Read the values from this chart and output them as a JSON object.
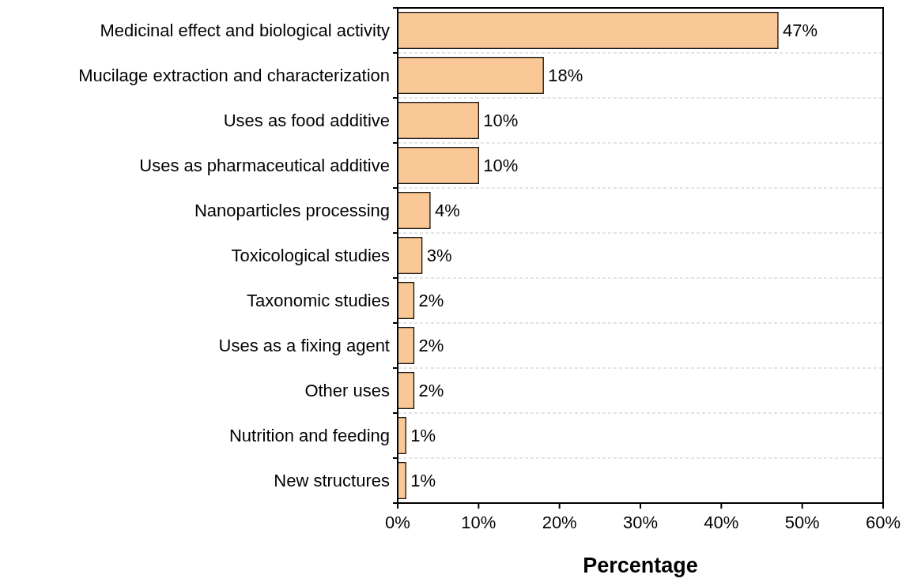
{
  "chart_data": {
    "type": "bar",
    "orientation": "horizontal",
    "xlabel": "Percentage",
    "categories": [
      "Medicinal effect and biological activity",
      "Mucilage extraction and characterization",
      "Uses as food additive",
      "Uses as pharmaceutical additive",
      "Nanoparticles processing",
      "Toxicological studies",
      "Taxonomic studies",
      "Uses as a fixing agent",
      "Other uses",
      "Nutrition and feeding",
      "New structures"
    ],
    "values": [
      47,
      18,
      10,
      10,
      4,
      3,
      2,
      2,
      2,
      1,
      1
    ],
    "value_labels": [
      "47%",
      "18%",
      "10%",
      "10%",
      "4%",
      "3%",
      "2%",
      "2%",
      "2%",
      "1%",
      "1%"
    ],
    "color": "#fac896",
    "xlim": [
      0,
      60
    ],
    "xticks": [
      {
        "value": 0,
        "label": "0%"
      },
      {
        "value": 10,
        "label": "10%"
      },
      {
        "value": 20,
        "label": "20%"
      },
      {
        "value": 30,
        "label": "30%"
      },
      {
        "value": 40,
        "label": "40%"
      },
      {
        "value": 50,
        "label": "50%"
      },
      {
        "value": 60,
        "label": "60%"
      }
    ],
    "grid": "y"
  }
}
